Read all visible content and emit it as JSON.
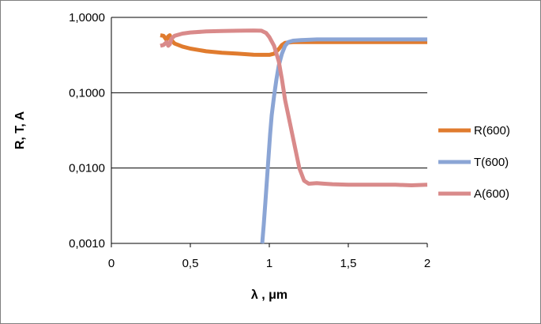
{
  "chart_data": {
    "type": "line",
    "title": "",
    "xlabel": "λ , μm",
    "ylabel": "R, T, A",
    "xscale": "linear",
    "yscale": "log",
    "xlim": [
      0,
      2
    ],
    "ylim": [
      0.001,
      1
    ],
    "x_ticks": [
      0,
      0.5,
      1,
      1.5,
      2
    ],
    "x_tick_labels": [
      "0",
      "0,5",
      "1",
      "1,5",
      "2"
    ],
    "y_ticks": [
      0.001,
      0.01,
      0.1,
      1
    ],
    "y_tick_labels": [
      "0,0010",
      "0,0100",
      "0,1000",
      "1,0000"
    ],
    "grid": "horizontal major",
    "legend_position": "right",
    "series": [
      {
        "name": "R(600)",
        "color": "#e07b2e",
        "points": [
          [
            0.31,
            0.58
          ],
          [
            0.33,
            0.57
          ],
          [
            0.35,
            0.5
          ],
          [
            0.36,
            0.56
          ],
          [
            0.37,
            0.58
          ],
          [
            0.38,
            0.5
          ],
          [
            0.4,
            0.45
          ],
          [
            0.45,
            0.41
          ],
          [
            0.5,
            0.385
          ],
          [
            0.6,
            0.355
          ],
          [
            0.7,
            0.34
          ],
          [
            0.8,
            0.33
          ],
          [
            0.9,
            0.32
          ],
          [
            0.95,
            0.318
          ],
          [
            1.0,
            0.318
          ],
          [
            1.03,
            0.33
          ],
          [
            1.06,
            0.38
          ],
          [
            1.08,
            0.43
          ],
          [
            1.1,
            0.46
          ],
          [
            1.15,
            0.47
          ],
          [
            1.2,
            0.47
          ],
          [
            1.3,
            0.47
          ],
          [
            1.4,
            0.47
          ],
          [
            1.5,
            0.47
          ],
          [
            1.6,
            0.47
          ],
          [
            1.7,
            0.47
          ],
          [
            1.8,
            0.47
          ],
          [
            1.9,
            0.47
          ],
          [
            2.0,
            0.47
          ]
        ]
      },
      {
        "name": "T(600)",
        "color": "#8ba5d5",
        "points": [
          [
            0.955,
            0.001
          ],
          [
            0.965,
            0.0018
          ],
          [
            0.975,
            0.0035
          ],
          [
            0.985,
            0.007
          ],
          [
            0.995,
            0.014
          ],
          [
            1.005,
            0.028
          ],
          [
            1.015,
            0.05
          ],
          [
            1.03,
            0.09
          ],
          [
            1.045,
            0.15
          ],
          [
            1.06,
            0.23
          ],
          [
            1.08,
            0.33
          ],
          [
            1.1,
            0.42
          ],
          [
            1.12,
            0.47
          ],
          [
            1.15,
            0.49
          ],
          [
            1.2,
            0.5
          ],
          [
            1.3,
            0.51
          ],
          [
            1.4,
            0.51
          ],
          [
            1.5,
            0.51
          ],
          [
            1.6,
            0.51
          ],
          [
            1.7,
            0.51
          ],
          [
            1.8,
            0.51
          ],
          [
            1.9,
            0.51
          ],
          [
            2.0,
            0.51
          ]
        ]
      },
      {
        "name": "A(600)",
        "color": "#d98a8a",
        "points": [
          [
            0.31,
            0.42
          ],
          [
            0.33,
            0.43
          ],
          [
            0.35,
            0.47
          ],
          [
            0.36,
            0.42
          ],
          [
            0.37,
            0.44
          ],
          [
            0.38,
            0.52
          ],
          [
            0.4,
            0.57
          ],
          [
            0.45,
            0.61
          ],
          [
            0.5,
            0.63
          ],
          [
            0.6,
            0.65
          ],
          [
            0.7,
            0.66
          ],
          [
            0.8,
            0.665
          ],
          [
            0.9,
            0.67
          ],
          [
            0.95,
            0.665
          ],
          [
            0.98,
            0.62
          ],
          [
            1.0,
            0.55
          ],
          [
            1.03,
            0.42
          ],
          [
            1.06,
            0.26
          ],
          [
            1.08,
            0.15
          ],
          [
            1.1,
            0.08
          ],
          [
            1.13,
            0.04
          ],
          [
            1.16,
            0.02
          ],
          [
            1.19,
            0.01
          ],
          [
            1.22,
            0.0068
          ],
          [
            1.25,
            0.0062
          ],
          [
            1.3,
            0.0063
          ],
          [
            1.35,
            0.0062
          ],
          [
            1.4,
            0.0061
          ],
          [
            1.5,
            0.006
          ],
          [
            1.6,
            0.006
          ],
          [
            1.7,
            0.006
          ],
          [
            1.8,
            0.006
          ],
          [
            1.9,
            0.0059
          ],
          [
            2.0,
            0.006
          ]
        ]
      }
    ]
  }
}
